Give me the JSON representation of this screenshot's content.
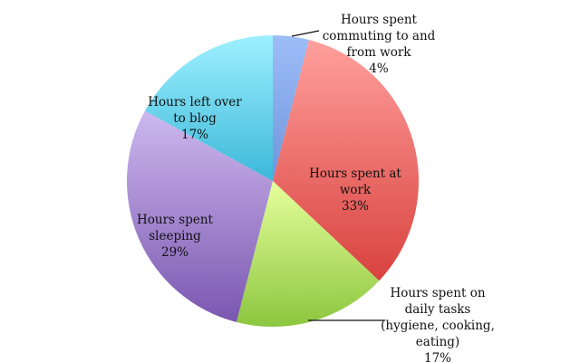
{
  "chart_data": {
    "type": "pie",
    "start": "top",
    "direction": "clockwise",
    "slices": [
      {
        "label": [
          "Hours spent",
          "commuting to and",
          "from work"
        ],
        "pct_label": "4%",
        "value": 4,
        "colors": [
          "#9dbdf7",
          "#6f95dc"
        ]
      },
      {
        "label": [
          "Hours spent at",
          "work"
        ],
        "pct_label": "33%",
        "value": 33,
        "colors": [
          "#ff9f9c",
          "#d9423e"
        ]
      },
      {
        "label": [
          "Hours spent on",
          "daily tasks",
          "(hygiene, cooking,",
          "eating)"
        ],
        "pct_label": "17%",
        "value": 17,
        "colors": [
          "#e6ff9c",
          "#8cc63f"
        ]
      },
      {
        "label": [
          "Hours spent",
          "sleeping"
        ],
        "pct_label": "29%",
        "value": 29,
        "colors": [
          "#cdb8ee",
          "#7a57b0"
        ]
      },
      {
        "label": [
          "Hours left over",
          "to blog"
        ],
        "pct_label": "17%",
        "value": 17,
        "colors": [
          "#9ef0ff",
          "#3cb8d9"
        ]
      }
    ],
    "legend": "none"
  }
}
